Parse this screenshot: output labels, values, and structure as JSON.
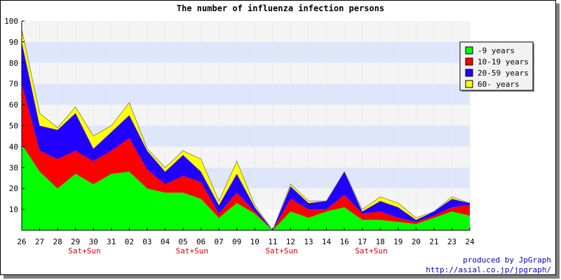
{
  "chart_data": {
    "type": "area",
    "stacked": true,
    "title": "The number of influenza infection persons",
    "xlabel": "",
    "ylabel": "",
    "ylim": [
      0,
      100
    ],
    "yticks": [
      10,
      20,
      30,
      40,
      50,
      60,
      70,
      80,
      90,
      100
    ],
    "grid": "horizontal bands",
    "legend_position": "top-right",
    "categories": [
      "26",
      "27",
      "28",
      "29",
      "30",
      "31",
      "02",
      "03",
      "04",
      "05",
      "06",
      "07",
      "09",
      "10",
      "11",
      "12",
      "13",
      "14",
      "16",
      "17",
      "18",
      "19",
      "20",
      "21",
      "23",
      "24"
    ],
    "weekend_labels": [
      {
        "category": "29",
        "text": "Sat+Sun"
      },
      {
        "category": "05",
        "text": "Sat+Sun"
      },
      {
        "category": "11",
        "text": "Sat+Sun"
      },
      {
        "category": "17",
        "text": "Sat+Sun"
      }
    ],
    "series": [
      {
        "name": "-9 years",
        "color": "#00ff00",
        "values": [
          41,
          28,
          20,
          27,
          22,
          27,
          28,
          20,
          18,
          18,
          15,
          6,
          13,
          8,
          0,
          9,
          6,
          9,
          11,
          5,
          5,
          4,
          3,
          6,
          9,
          7
        ]
      },
      {
        "name": "10-19 years",
        "color": "#ff0000",
        "values": [
          29,
          10,
          14,
          11,
          11,
          11,
          16,
          9,
          4,
          8,
          8,
          2,
          5,
          1,
          0,
          6,
          4,
          1,
          6,
          3,
          4,
          2,
          1,
          1,
          2,
          5
        ]
      },
      {
        "name": "20-59 years",
        "color": "#2200ff",
        "values": [
          20,
          12,
          14,
          18,
          6,
          9,
          11,
          9,
          6,
          10,
          5,
          4,
          9,
          2,
          0,
          6,
          3,
          4,
          11,
          1,
          5,
          5,
          1,
          2,
          4,
          1
        ]
      },
      {
        "name": "60- years",
        "color": "#ffff00",
        "values": [
          6,
          6,
          1,
          3,
          6,
          3,
          6,
          1,
          2,
          2,
          6,
          2,
          6,
          1,
          0,
          1,
          1,
          0,
          0,
          1,
          2,
          2,
          1,
          0,
          1,
          0
        ]
      }
    ]
  },
  "credits": {
    "line1": "produced by JpGraph",
    "line2": "http://asial.co.jp/jpgraph/"
  }
}
